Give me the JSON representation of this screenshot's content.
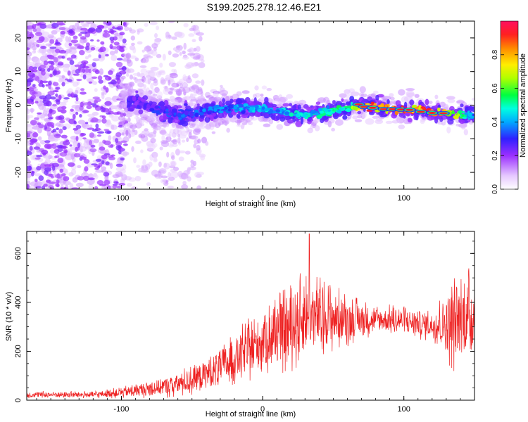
{
  "title": "S199.2025.278.12.46.E21",
  "chart_data": [
    {
      "type": "heatmap",
      "title": "S199.2025.278.12.46.E21",
      "xlabel": "Height of straight line (km)",
      "ylabel": "Frequency (Hz)",
      "xlim": [
        -167,
        150
      ],
      "ylim": [
        -25,
        25
      ],
      "x_ticks": [
        -100,
        0,
        100
      ],
      "y_ticks": [
        -20,
        -10,
        0,
        10,
        20
      ],
      "colorbar": {
        "label": "Normalized spectral amplitude",
        "range": [
          0,
          1
        ],
        "ticks": [
          "0.0",
          "0.2",
          "0.4",
          "0.6",
          "0.8"
        ]
      },
      "ridge": {
        "description": "strong spectral ridge near 0 Hz from about 65 to 140 km",
        "x": [
          -90,
          -60,
          -30,
          0,
          30,
          60,
          70,
          90,
          110,
          130,
          148
        ],
        "freq_hz": [
          1,
          -3,
          -1,
          -1,
          -3,
          -1,
          0,
          -1,
          -1.5,
          -2.5,
          -3
        ],
        "amplitude": [
          0.3,
          0.35,
          0.4,
          0.45,
          0.5,
          0.55,
          0.95,
          0.95,
          0.95,
          0.9,
          0.4
        ]
      }
    },
    {
      "type": "line",
      "xlabel": "Height of straight line (km)",
      "ylabel": "SNR (10 * v/v)",
      "xlim": [
        -167,
        150
      ],
      "ylim": [
        0,
        690
      ],
      "x_ticks": [
        -100,
        0,
        100
      ],
      "y_ticks": [
        0,
        200,
        400,
        600
      ],
      "color": "#ee2222",
      "envelope": {
        "x": [
          -167,
          -120,
          -100,
          -80,
          -60,
          -40,
          -20,
          0,
          20,
          30,
          40,
          60,
          80,
          100,
          120,
          135,
          150
        ],
        "low": [
          10,
          10,
          12,
          15,
          20,
          40,
          80,
          120,
          150,
          180,
          200,
          240,
          280,
          270,
          250,
          150,
          200
        ],
        "high": [
          35,
          35,
          50,
          80,
          110,
          170,
          260,
          360,
          450,
          500,
          480,
          420,
          380,
          380,
          360,
          480,
          520
        ]
      },
      "peak": {
        "x": 33,
        "y": 680
      }
    }
  ]
}
